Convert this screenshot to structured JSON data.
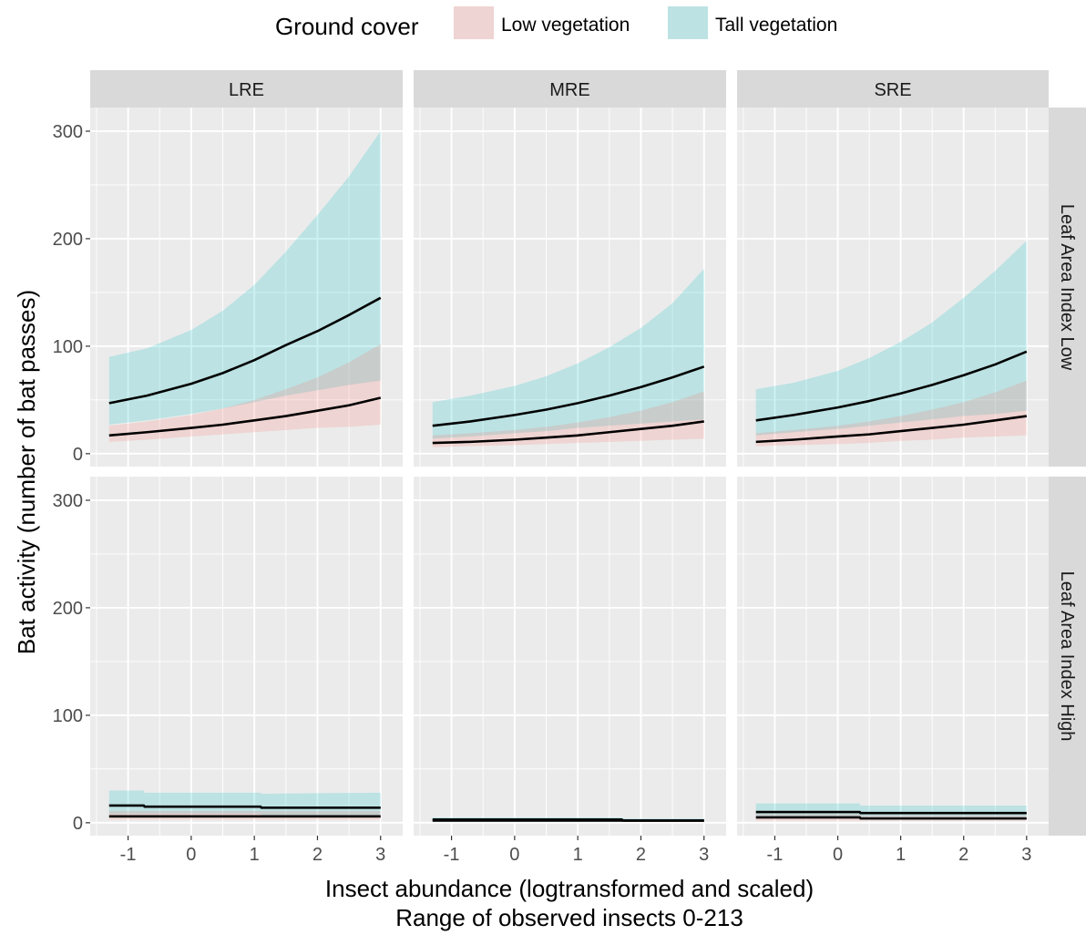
{
  "chart_data": {
    "type": "line",
    "legend": {
      "title": "Ground cover",
      "position": "top",
      "entries": [
        {
          "label": "Low vegetation",
          "color": "#F8766D"
        },
        {
          "label": "Tall vegetation",
          "color": "#00BFC4"
        }
      ]
    },
    "xlabel": "Insect abundance (logtransformed and scaled)",
    "xlabel2": "Range of observed insects 0-213",
    "ylabel": "Bat activity (number of bat passes)",
    "xlim": [
      -1.6,
      3.35
    ],
    "ylim": [
      -12,
      322
    ],
    "xticks": [
      -1,
      0,
      1,
      2,
      3
    ],
    "yticks": [
      0,
      100,
      200,
      300
    ],
    "columns": [
      "LRE",
      "MRE",
      "SRE"
    ],
    "rows": [
      "Leaf Area Index Low",
      "Leaf Area Index High"
    ],
    "grid": true,
    "panels": [
      {
        "column": "LRE",
        "row": "Leaf Area Index Low",
        "series": [
          {
            "group": "Tall vegetation",
            "x": [
              -1.3,
              -0.7,
              0,
              0.5,
              1,
              1.5,
              2,
              2.5,
              3
            ],
            "y": [
              47,
              54,
              65,
              75,
              87,
              101,
              114,
              129,
              145
            ],
            "lower": [
              27,
              31,
              37,
              42,
              48,
              54,
              59,
              64,
              68
            ],
            "upper": [
              90,
              98,
              115,
              133,
              157,
              188,
              222,
              258,
              300
            ]
          },
          {
            "group": "Low vegetation",
            "x": [
              -1.3,
              -0.7,
              0,
              0.5,
              1,
              1.5,
              2,
              2.5,
              3
            ],
            "y": [
              17,
              20,
              24,
              27,
              31,
              35,
              40,
              45,
              52
            ],
            "lower": [
              11,
              13,
              16,
              18,
              20,
              22,
              24,
              25,
              27
            ],
            "upper": [
              26,
              30,
              36,
              42,
              50,
              60,
              71,
              85,
              102
            ]
          }
        ]
      },
      {
        "column": "MRE",
        "row": "Leaf Area Index Low",
        "series": [
          {
            "group": "Tall vegetation",
            "x": [
              -1.3,
              -0.7,
              0,
              0.5,
              1,
              1.5,
              2,
              2.5,
              3
            ],
            "y": [
              26,
              30,
              36,
              41,
              47,
              54,
              62,
              71,
              81
            ],
            "lower": [
              14,
              16,
              19,
              21,
              24,
              26,
              28,
              30,
              32
            ],
            "upper": [
              48,
              54,
              63,
              72,
              84,
              99,
              117,
              140,
              172
            ]
          },
          {
            "group": "Low vegetation",
            "x": [
              -1.3,
              -0.7,
              0,
              0.5,
              1,
              1.5,
              2,
              2.5,
              3
            ],
            "y": [
              10,
              11,
              13,
              15,
              17,
              20,
              23,
              26,
              30
            ],
            "lower": [
              6,
              7,
              8,
              9,
              10,
              11,
              12,
              13,
              14
            ],
            "upper": [
              17,
              19,
              22,
              25,
              29,
              34,
              40,
              48,
              58
            ]
          }
        ]
      },
      {
        "column": "SRE",
        "row": "Leaf Area Index Low",
        "series": [
          {
            "group": "Tall vegetation",
            "x": [
              -1.3,
              -0.7,
              0,
              0.5,
              1,
              1.5,
              2,
              2.5,
              3
            ],
            "y": [
              31,
              36,
              43,
              49,
              56,
              64,
              73,
              83,
              95
            ],
            "lower": [
              17,
              20,
              23,
              26,
              29,
              32,
              35,
              37,
              40
            ],
            "upper": [
              60,
              66,
              77,
              89,
              104,
              122,
              145,
              170,
              198
            ]
          },
          {
            "group": "Low vegetation",
            "x": [
              -1.3,
              -0.7,
              0,
              0.5,
              1,
              1.5,
              2,
              2.5,
              3
            ],
            "y": [
              11,
              13,
              16,
              18,
              21,
              24,
              27,
              31,
              35
            ],
            "lower": [
              7,
              8,
              9,
              10,
              12,
              13,
              15,
              16,
              17
            ],
            "upper": [
              19,
              22,
              26,
              30,
              35,
              41,
              48,
              57,
              68
            ]
          }
        ]
      },
      {
        "column": "LRE",
        "row": "Leaf Area Index High",
        "series": [
          {
            "group": "Tall vegetation",
            "x": [
              -1.3,
              -0.75,
              -0.74,
              1.1,
              1.11,
              3
            ],
            "y": [
              16,
              16,
              15,
              15,
              14,
              14
            ],
            "lower": [
              8,
              8,
              8,
              8,
              7,
              7
            ],
            "upper": [
              30,
              30,
              28,
              28,
              27,
              28
            ]
          },
          {
            "group": "Low vegetation",
            "x": [
              -1.3,
              0,
              1,
              2,
              3
            ],
            "y": [
              6,
              6,
              6,
              6,
              6
            ],
            "lower": [
              3,
              3,
              3,
              3,
              3
            ],
            "upper": [
              11,
              11,
              11,
              11,
              11
            ]
          }
        ]
      },
      {
        "column": "MRE",
        "row": "Leaf Area Index High",
        "series": [
          {
            "group": "Tall vegetation",
            "x": [
              -1.3,
              1.7,
              1.71,
              3
            ],
            "y": [
              3,
              3,
              2,
              2
            ],
            "lower": [
              1,
              1,
              1,
              1
            ],
            "upper": [
              5,
              5,
              4,
              4
            ]
          },
          {
            "group": "Low vegetation",
            "x": [
              -1.3,
              1,
              2,
              3
            ],
            "y": [
              2,
              2,
              2,
              2
            ],
            "lower": [
              1,
              1,
              1,
              1
            ],
            "upper": [
              3,
              3,
              3,
              3
            ]
          }
        ]
      },
      {
        "column": "SRE",
        "row": "Leaf Area Index High",
        "series": [
          {
            "group": "Tall vegetation",
            "x": [
              -1.3,
              0.35,
              0.36,
              3
            ],
            "y": [
              10,
              10,
              9,
              9
            ],
            "lower": [
              5,
              5,
              5,
              5
            ],
            "upper": [
              18,
              18,
              16,
              16
            ]
          },
          {
            "group": "Low vegetation",
            "x": [
              -1.3,
              0.35,
              0.36,
              3
            ],
            "y": [
              5,
              5,
              4,
              4
            ],
            "lower": [
              2,
              2,
              2,
              2
            ],
            "upper": [
              8,
              8,
              7,
              7
            ]
          }
        ]
      }
    ]
  }
}
